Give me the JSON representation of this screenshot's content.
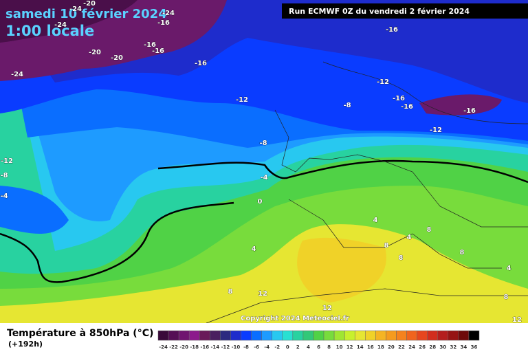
{
  "header": {
    "date": "samedi 10 février 2024",
    "time": "1:00 locale",
    "run": "Run ECMWF 0Z du vendredi 2 février 2024"
  },
  "copyright": "Copyright 2024 Meteociel.fr",
  "legend": {
    "title": "Température à 850hPa (°C)",
    "lead": "(+192h)"
  },
  "contour_labels": [
    -20,
    -24,
    -24,
    -16,
    -24,
    -16,
    -16,
    -16,
    -20,
    -20,
    -24,
    -16,
    -12,
    -12,
    -8,
    -16,
    -16,
    -16,
    -12,
    -8,
    -12,
    -8,
    -4,
    -4,
    0,
    4,
    8,
    4,
    8,
    4,
    8,
    8,
    4,
    8,
    12,
    12,
    12,
    8
  ],
  "colorbar": {
    "ticks": [
      -24,
      -22,
      -20,
      -18,
      -16,
      -14,
      -12,
      -10,
      -8,
      -6,
      -4,
      -2,
      0,
      2,
      4,
      6,
      8,
      10,
      12,
      14,
      16,
      18,
      20,
      22,
      24,
      26,
      28,
      30,
      32,
      34,
      36
    ],
    "colors": [
      "#3a0a3a",
      "#550f55",
      "#701470",
      "#8c1a8c",
      "#6a1a5a",
      "#4a2060",
      "#2c2a80",
      "#1e2ccc",
      "#0a3cff",
      "#0a6eff",
      "#1e9bff",
      "#28c8f0",
      "#28e0d2",
      "#28d2a0",
      "#32c878",
      "#50d246",
      "#78dc3c",
      "#a0e632",
      "#c8f02d",
      "#e6e632",
      "#f0d228",
      "#f5b423",
      "#f59b1e",
      "#f5821e",
      "#f0641e",
      "#e6461e",
      "#d22d1e",
      "#b41e1e",
      "#961414",
      "#6e0a0a",
      "#000000"
    ]
  }
}
